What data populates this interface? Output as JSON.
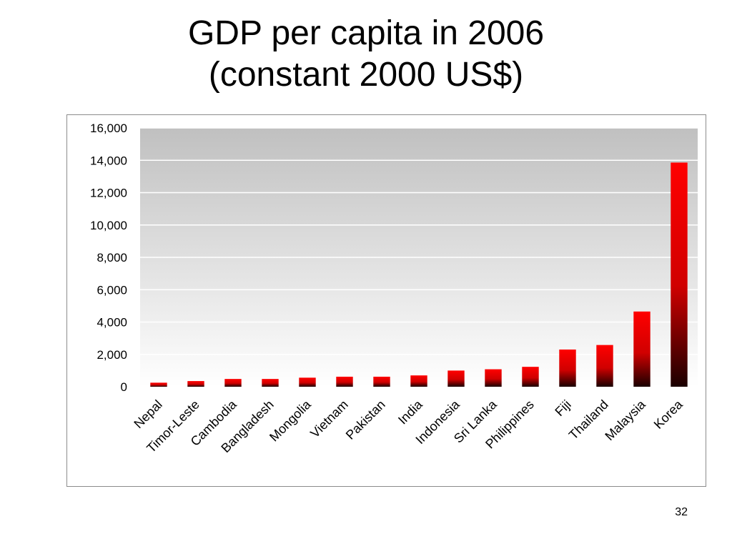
{
  "slide": {
    "title_line1": "GDP per capita in 2006",
    "title_line2": "(constant 2000 US$)",
    "page_number": "32"
  },
  "colors": {
    "bar_top": "#ff0000",
    "bar_bottom": "#1a0000",
    "plot_top": "#c0c0c0",
    "plot_bottom": "#ffffff",
    "gridline": "#ffffff",
    "frame": "#8c8c8c"
  },
  "chart_data": {
    "type": "bar",
    "title": "GDP per capita in 2006 (constant 2000 US$)",
    "xlabel": "",
    "ylabel": "",
    "ylim": [
      0,
      16000
    ],
    "yticks": [
      "0",
      "2,000",
      "4,000",
      "6,000",
      "8,000",
      "10,000",
      "12,000",
      "14,000",
      "16,000"
    ],
    "ytick_values": [
      0,
      2000,
      4000,
      6000,
      8000,
      10000,
      12000,
      14000,
      16000
    ],
    "grid": true,
    "legend": "none",
    "categories": [
      "Nepal",
      "Timor-Leste",
      "Cambodia",
      "Bangladesh",
      "Mongolia",
      "Vietnam",
      "Pakistan",
      "India",
      "Indonesia",
      "Sri Lanka",
      "Philippines",
      "Fiji",
      "Thailand",
      "Malaysia",
      "Korea"
    ],
    "values": [
      250,
      350,
      480,
      480,
      560,
      620,
      620,
      700,
      1000,
      1080,
      1230,
      2300,
      2580,
      4650,
      13860
    ]
  }
}
